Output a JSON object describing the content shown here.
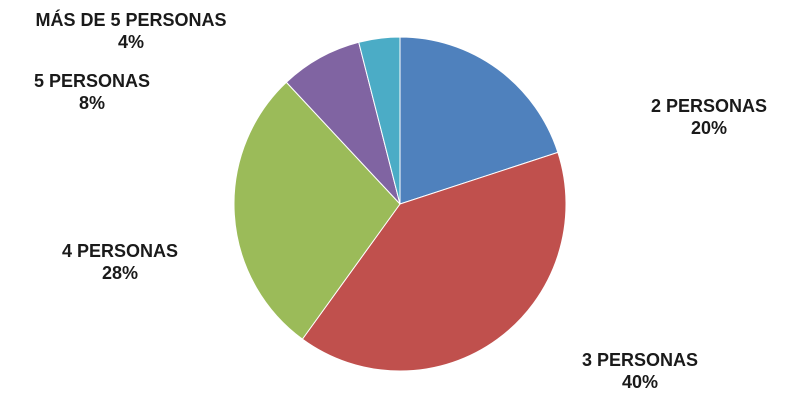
{
  "chart_data": {
    "type": "pie",
    "title": "",
    "start_angle_deg": 0,
    "direction": "clockwise",
    "slices": [
      {
        "label": "2 PERSONAS",
        "value": 20,
        "value_label": "20%",
        "color": "#4F81BD"
      },
      {
        "label": "3 PERSONAS",
        "value": 40,
        "value_label": "40%",
        "color": "#C0504D"
      },
      {
        "label": "4 PERSONAS",
        "value": 28,
        "value_label": "28%",
        "color": "#9BBB59"
      },
      {
        "label": "5 PERSONAS",
        "value": 8,
        "value_label": "8%",
        "color": "#8064A2"
      },
      {
        "label": "MÁS DE 5 PERSONAS",
        "value": 4,
        "value_label": "4%",
        "color": "#4BACC6"
      }
    ]
  }
}
